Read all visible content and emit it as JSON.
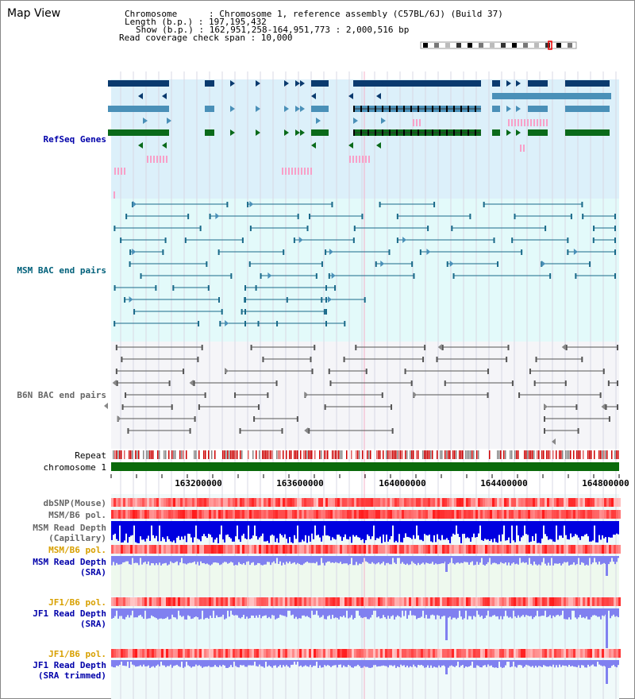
{
  "title": "Map View",
  "header": {
    "chromosome": "Chromosome      : Chromosome 1, reference assembly (C57BL/6J) (Build 37)",
    "length": "Length (b.p.) : 197,195,432",
    "show": "Show (b.p.) : 162,951,258-164,951,773 : 2,000,516 bp",
    "coverage": "Read coverage check span : 10,000"
  },
  "tracks": {
    "refseq": "RefSeq Genes",
    "msm_bac": "MSM BAC end pairs",
    "b6n_bac": "B6N BAC end pairs",
    "repeat": "Repeat",
    "chromosome": "chromosome 1",
    "dbsnp": "dbSNP(Mouse)",
    "msm_b6_pol": "MSM/B6 pol.",
    "msm_depth_cap_1": "MSM Read Depth",
    "msm_depth_cap_2": "(Capillary)",
    "msm_b6_pol_2": "MSM/B6 pol.",
    "msm_depth_sra_1": "MSM Read Depth",
    "msm_depth_sra_2": "(SRA)",
    "jf1_b6_pol": "JF1/B6 pol.",
    "jf1_depth_sra_1": "JF1 Read Depth",
    "jf1_depth_sra_2": "(SRA)",
    "jf1_b6_pol_2": "JF1/B6 pol.",
    "jf1_depth_trim_1": "JF1 Read Depth",
    "jf1_depth_trim_2": "(SRA trimmed)"
  },
  "axis": {
    "ticks": [
      "163200000",
      "163600000",
      "164000000",
      "164400000",
      "164800000"
    ]
  },
  "colors": {
    "refseq_bg": "#dcf0fa",
    "msm_bg": "#e3fafa",
    "b6n_bg": "#f5f5f8",
    "gene_navy": "#0a3a6e",
    "gene_steel": "#4a90b8",
    "gene_green": "#0a6a1a",
    "msm_pair": "#1a6a8a",
    "b6n_pair": "#555555",
    "chromosome": "#0a6a0a",
    "depth_blue": "#0000e0",
    "depth_lilac": "#8080f0"
  }
}
